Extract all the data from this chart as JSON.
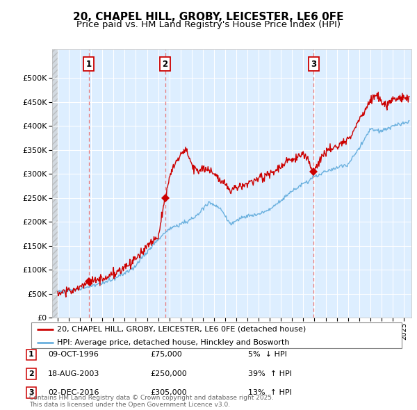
{
  "title": "20, CHAPEL HILL, GROBY, LEICESTER, LE6 0FE",
  "subtitle": "Price paid vs. HM Land Registry's House Price Index (HPI)",
  "ylim": [
    0,
    560000
  ],
  "yticks": [
    0,
    50000,
    100000,
    150000,
    200000,
    250000,
    300000,
    350000,
    400000,
    450000,
    500000
  ],
  "ytick_labels": [
    "£0",
    "£50K",
    "£100K",
    "£150K",
    "£200K",
    "£250K",
    "£300K",
    "£350K",
    "£400K",
    "£450K",
    "£500K"
  ],
  "hpi_color": "#6ab0de",
  "price_color": "#cc0000",
  "marker_color": "#cc0000",
  "vline_color": "#e87878",
  "background_color": "#ddeeff",
  "grid_color": "#ffffff",
  "title_fontsize": 11,
  "subtitle_fontsize": 9.5,
  "transactions": [
    {
      "num": 1,
      "date": "09-OCT-1996",
      "price": 75000,
      "pct": "5%",
      "dir": "↓",
      "x_year": 1996.77
    },
    {
      "num": 2,
      "date": "18-AUG-2003",
      "price": 250000,
      "pct": "39%",
      "dir": "↑",
      "x_year": 2003.62
    },
    {
      "num": 3,
      "date": "02-DEC-2016",
      "price": 305000,
      "pct": "13%",
      "dir": "↑",
      "x_year": 2016.92
    }
  ],
  "legend_entries": [
    {
      "label": "20, CHAPEL HILL, GROBY, LEICESTER, LE6 0FE (detached house)",
      "color": "#cc0000"
    },
    {
      "label": "HPI: Average price, detached house, Hinckley and Bosworth",
      "color": "#6ab0de"
    }
  ],
  "footer": "Contains HM Land Registry data © Crown copyright and database right 2025.\nThis data is licensed under the Open Government Licence v3.0.",
  "xmin": 1993.5,
  "xmax": 2025.7
}
